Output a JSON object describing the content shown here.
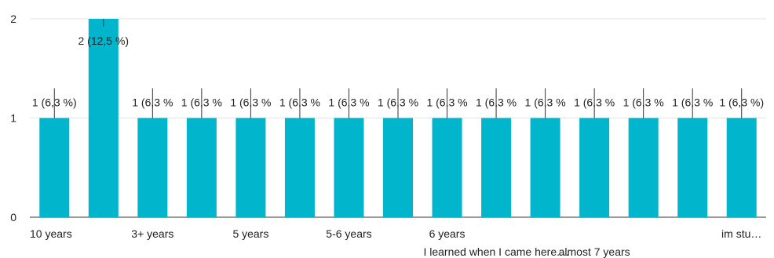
{
  "chart_data": {
    "type": "bar",
    "title": "",
    "xlabel": "",
    "ylabel": "",
    "ylim": [
      0,
      2
    ],
    "yticks": [
      "0",
      "1",
      "2"
    ],
    "grid": true,
    "bar_color": "#00B5CC",
    "grid_color": "#E3E3E3",
    "categories": [
      {
        "label": "10 years",
        "value": 1,
        "data_label": "1 (6,3 %)"
      },
      {
        "label": "",
        "value": 2,
        "data_label": "2 (12,5 %)"
      },
      {
        "label": "3+ years",
        "value": 1,
        "data_label": "1 (6,3 %"
      },
      {
        "label": "",
        "value": 1,
        "data_label": "1 (6,3 %"
      },
      {
        "label": "5 years",
        "value": 1,
        "data_label": "1 (6,3 %"
      },
      {
        "label": "",
        "value": 1,
        "data_label": "1 (6,3 %"
      },
      {
        "label": "5-6 years",
        "value": 1,
        "data_label": "1 (6,3 %"
      },
      {
        "label": "",
        "value": 1,
        "data_label": "1 (6,3 %"
      },
      {
        "label": "6 years",
        "value": 1,
        "data_label": "1 (6,3 %"
      },
      {
        "label": "I learned when I came here....",
        "value": 1,
        "data_label": "1 (6,3 %"
      },
      {
        "label": "",
        "value": 1,
        "data_label": "1 (6,3 %"
      },
      {
        "label": "almost 7 years",
        "value": 1,
        "data_label": "1 (6,3 %"
      },
      {
        "label": "",
        "value": 1,
        "data_label": "1 (6,3 %"
      },
      {
        "label": "",
        "value": 1,
        "data_label": "1 (6,3 %"
      },
      {
        "label": "im stu…",
        "value": 1,
        "data_label": "1 (6,3 %)"
      }
    ]
  }
}
